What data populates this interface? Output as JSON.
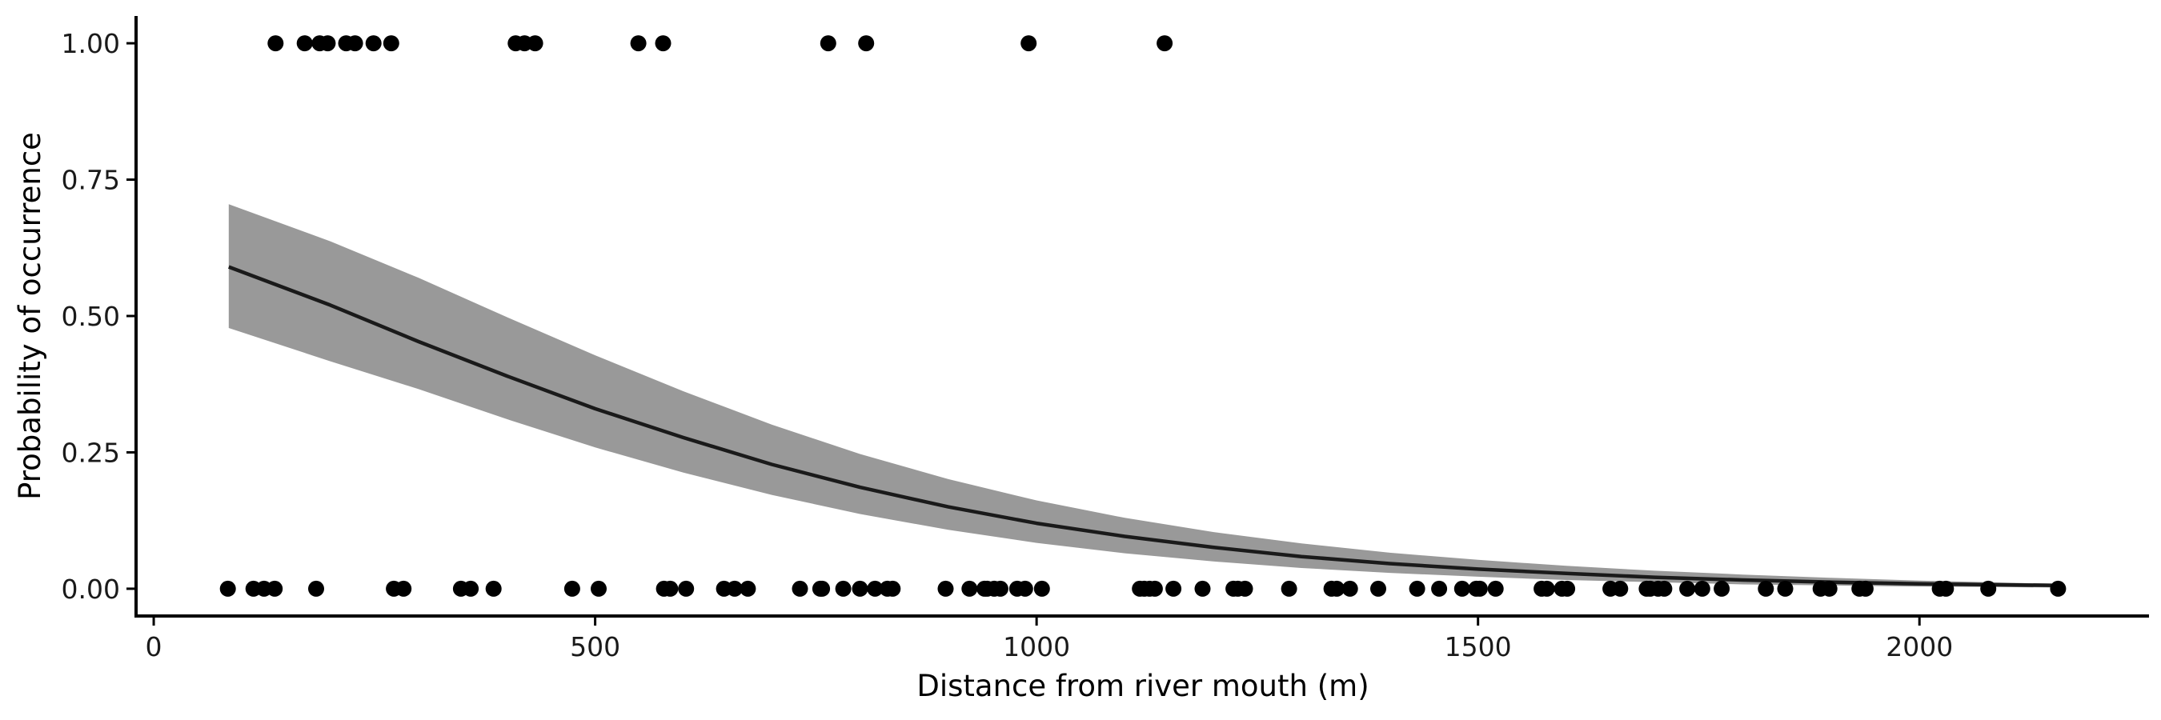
{
  "chart_data": {
    "type": "scatter",
    "title": "",
    "xlabel": "Distance from river mouth (m)",
    "ylabel": "Probability of occurrence",
    "xlim": [
      -20,
      2260
    ],
    "ylim": [
      -0.05,
      1.05
    ],
    "xticks": [
      0,
      500,
      1000,
      1500,
      2000
    ],
    "xtick_labels": [
      "0",
      "500",
      "1000",
      "1500",
      "2000"
    ],
    "yticks": [
      0,
      0.25,
      0.5,
      0.75,
      1.0
    ],
    "ytick_labels": [
      "0.00",
      "0.25",
      "0.50",
      "0.75",
      "1.00"
    ],
    "grid": false,
    "legend": "none",
    "colors": {
      "points": "#000000",
      "fit_line": "#1a1a1a",
      "ci_band": "#999999",
      "axis": "#000000"
    },
    "points": {
      "presence_x": [
        138,
        171,
        188,
        197,
        218,
        228,
        249,
        269,
        410,
        420,
        432,
        549,
        577,
        764,
        807,
        991,
        1145
      ],
      "absence_x": [
        84,
        113,
        125,
        137,
        184,
        272,
        283,
        348,
        359,
        385,
        474,
        504,
        578,
        585,
        603,
        646,
        658,
        673,
        732,
        755,
        757,
        781,
        800,
        817,
        831,
        837,
        897,
        924,
        941,
        944,
        952,
        959,
        978,
        987,
        1006,
        1117,
        1122,
        1128,
        1134,
        1155,
        1188,
        1223,
        1228,
        1236,
        1286,
        1334,
        1340,
        1355,
        1387,
        1431,
        1456,
        1482,
        1498,
        1502,
        1520,
        1572,
        1578,
        1595,
        1601,
        1650,
        1661,
        1691,
        1695,
        1704,
        1711,
        1737,
        1754,
        1776,
        1826,
        1848,
        1888,
        1898,
        1932,
        1939,
        2023,
        2030,
        2078,
        2157
      ]
    },
    "fit": {
      "x": [
        85,
        200,
        300,
        400,
        500,
        600,
        700,
        800,
        900,
        1000,
        1100,
        1200,
        1300,
        1400,
        1500,
        1600,
        1700,
        1800,
        1900,
        2000,
        2100,
        2160
      ],
      "y": [
        0.59,
        0.52,
        0.453,
        0.39,
        0.33,
        0.277,
        0.228,
        0.186,
        0.15,
        0.12,
        0.096,
        0.076,
        0.059,
        0.046,
        0.036,
        0.028,
        0.021,
        0.016,
        0.012,
        0.009,
        0.007,
        0.006
      ]
    },
    "ci": {
      "x": [
        85,
        200,
        300,
        400,
        500,
        600,
        700,
        800,
        900,
        1000,
        1100,
        1200,
        1300,
        1400,
        1500,
        1600,
        1700,
        1800,
        1900,
        2000,
        2100,
        2160
      ],
      "upper": [
        0.705,
        0.637,
        0.57,
        0.498,
        0.428,
        0.362,
        0.301,
        0.247,
        0.201,
        0.162,
        0.13,
        0.104,
        0.083,
        0.066,
        0.053,
        0.042,
        0.033,
        0.026,
        0.02,
        0.015,
        0.011,
        0.009
      ],
      "lower": [
        0.478,
        0.417,
        0.366,
        0.311,
        0.259,
        0.213,
        0.172,
        0.137,
        0.108,
        0.084,
        0.065,
        0.05,
        0.038,
        0.029,
        0.022,
        0.016,
        0.012,
        0.008,
        0.006,
        0.004,
        0.003,
        0.002
      ]
    }
  }
}
